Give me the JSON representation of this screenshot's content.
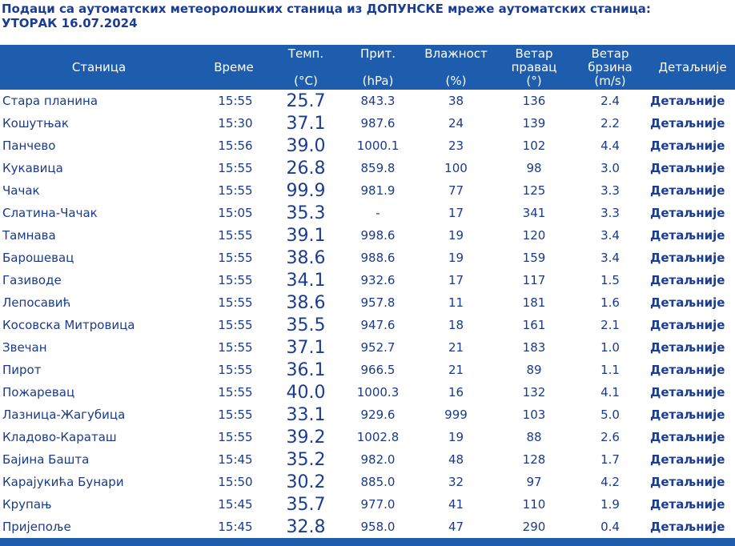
{
  "title_line1": "Подаци са аутоматских метеоролошких станица из ДОПУНСКЕ мреже аутоматских станица:",
  "title_line2": "УТОРАК 16.07.2024",
  "headers": {
    "station": "Станица",
    "time": "Време",
    "temp_top": "Темп.",
    "temp_unit": "(°C)",
    "pressure_top": "Прит.",
    "pressure_unit": "(hPa)",
    "humidity_top": "Влажност",
    "humidity_unit": "(%)",
    "wind_dir_line1": "Ветар",
    "wind_dir_line2": "правац",
    "wind_dir_unit": "(°)",
    "wind_speed_line1": "Ветар",
    "wind_speed_line2": "брзина",
    "wind_speed_unit": "(m/s)",
    "details": "Детаљније"
  },
  "rows": [
    {
      "station": "Стара планина",
      "time": "15:55",
      "temp": "25.7",
      "pressure": "843.3",
      "humidity": "38",
      "wind_dir": "136",
      "wind_speed": "2.4",
      "details": "Детаљније"
    },
    {
      "station": "Кошутњак",
      "time": "15:30",
      "temp": "37.1",
      "pressure": "987.6",
      "humidity": "24",
      "wind_dir": "139",
      "wind_speed": "2.2",
      "details": "Детаљније"
    },
    {
      "station": "Панчево",
      "time": "15:56",
      "temp": "39.0",
      "pressure": "1000.1",
      "humidity": "23",
      "wind_dir": "102",
      "wind_speed": "4.4",
      "details": "Детаљније"
    },
    {
      "station": "Кукавица",
      "time": "15:55",
      "temp": "26.8",
      "pressure": "859.8",
      "humidity": "100",
      "wind_dir": "98",
      "wind_speed": "3.0",
      "details": "Детаљније"
    },
    {
      "station": "Чачак",
      "time": "15:55",
      "temp": "99.9",
      "pressure": "981.9",
      "humidity": "77",
      "wind_dir": "125",
      "wind_speed": "3.3",
      "details": "Детаљније"
    },
    {
      "station": "Слатина-Чачак",
      "time": "15:05",
      "temp": "35.3",
      "pressure": "-",
      "humidity": "17",
      "wind_dir": "341",
      "wind_speed": "3.3",
      "details": "Детаљније"
    },
    {
      "station": "Тамнава",
      "time": "15:55",
      "temp": "39.1",
      "pressure": "998.6",
      "humidity": "19",
      "wind_dir": "120",
      "wind_speed": "3.4",
      "details": "Детаљније"
    },
    {
      "station": "Барошевац",
      "time": "15:55",
      "temp": "38.6",
      "pressure": "988.6",
      "humidity": "19",
      "wind_dir": "159",
      "wind_speed": "3.4",
      "details": "Детаљније"
    },
    {
      "station": "Газиводе",
      "time": "15:55",
      "temp": "34.1",
      "pressure": "932.6",
      "humidity": "17",
      "wind_dir": "117",
      "wind_speed": "1.5",
      "details": "Детаљније"
    },
    {
      "station": "Лепосавић",
      "time": "15:55",
      "temp": "38.6",
      "pressure": "957.8",
      "humidity": "11",
      "wind_dir": "181",
      "wind_speed": "1.6",
      "details": "Детаљније"
    },
    {
      "station": "Косовска Митровица",
      "time": "15:55",
      "temp": "35.5",
      "pressure": "947.6",
      "humidity": "18",
      "wind_dir": "161",
      "wind_speed": "2.1",
      "details": "Детаљније"
    },
    {
      "station": "Звечан",
      "time": "15:55",
      "temp": "37.1",
      "pressure": "952.7",
      "humidity": "21",
      "wind_dir": "183",
      "wind_speed": "1.0",
      "details": "Детаљније"
    },
    {
      "station": "Пирот",
      "time": "15:55",
      "temp": "36.1",
      "pressure": "966.5",
      "humidity": "21",
      "wind_dir": "89",
      "wind_speed": "1.1",
      "details": "Детаљније"
    },
    {
      "station": "Пожаревац",
      "time": "15:55",
      "temp": "40.0",
      "pressure": "1000.3",
      "humidity": "16",
      "wind_dir": "132",
      "wind_speed": "4.1",
      "details": "Детаљније"
    },
    {
      "station": "Лазница-Жагубица",
      "time": "15:55",
      "temp": "33.1",
      "pressure": "929.6",
      "humidity": "999",
      "wind_dir": "103",
      "wind_speed": "5.0",
      "details": "Детаљније"
    },
    {
      "station": "Кладово-Караташ",
      "time": "15:55",
      "temp": "39.2",
      "pressure": "1002.8",
      "humidity": "19",
      "wind_dir": "88",
      "wind_speed": "2.6",
      "details": "Детаљније"
    },
    {
      "station": "Бајина Башта",
      "time": "15:45",
      "temp": "35.2",
      "pressure": "982.0",
      "humidity": "48",
      "wind_dir": "128",
      "wind_speed": "1.7",
      "details": "Детаљније"
    },
    {
      "station": "Карајукића Бунари",
      "time": "15:50",
      "temp": "30.2",
      "pressure": "885.0",
      "humidity": "32",
      "wind_dir": "97",
      "wind_speed": "4.2",
      "details": "Детаљније"
    },
    {
      "station": "Крупањ",
      "time": "15:45",
      "temp": "35.7",
      "pressure": "977.0",
      "humidity": "41",
      "wind_dir": "110",
      "wind_speed": "1.9",
      "details": "Детаљније"
    },
    {
      "station": "Пријепоље",
      "time": "15:45",
      "temp": "32.8",
      "pressure": "958.0",
      "humidity": "47",
      "wind_dir": "290",
      "wind_speed": "0.4",
      "details": "Детаљније"
    }
  ],
  "colors": {
    "header_bg": "#1e5dae",
    "text": "#1a3a8a"
  }
}
